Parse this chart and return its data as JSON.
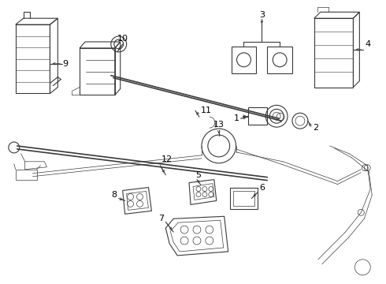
{
  "bg_color": "#ffffff",
  "line_color": "#3a3a3a",
  "fig_width": 4.9,
  "fig_height": 3.6,
  "dpi": 100
}
